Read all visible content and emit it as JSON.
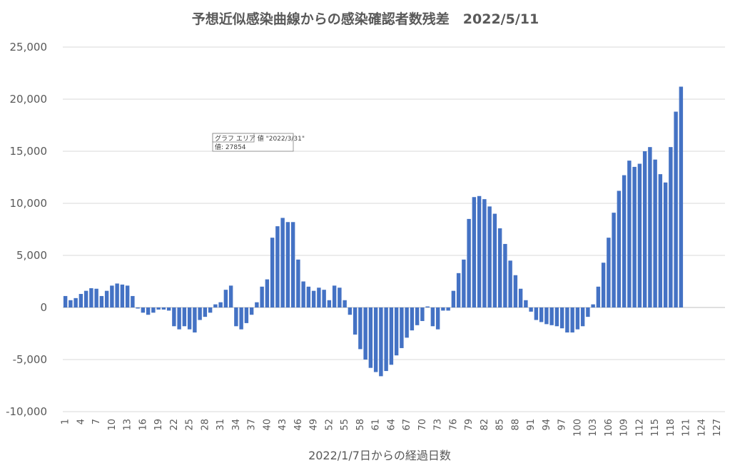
{
  "chart_data": {
    "type": "bar",
    "title": "予想近似感染曲線からの感染確認者数残差　2022/5/11",
    "xlabel": "2022/1/7日からの経過日数",
    "ylabel": "",
    "ylim": [
      -10000,
      25000
    ],
    "yticks": [
      25000,
      20000,
      15000,
      10000,
      5000,
      0,
      -5000,
      -10000
    ],
    "ytick_labels": [
      "25,000",
      "20,000",
      "15,000",
      "10,000",
      "5,000",
      "0",
      "-5,000",
      "-10,000"
    ],
    "x_min": 1,
    "x_max": 128,
    "xticks": [
      1,
      4,
      7,
      10,
      13,
      16,
      19,
      22,
      25,
      28,
      31,
      34,
      37,
      40,
      43,
      46,
      49,
      52,
      55,
      58,
      61,
      64,
      67,
      70,
      73,
      76,
      79,
      82,
      85,
      88,
      91,
      94,
      97,
      100,
      103,
      106,
      109,
      112,
      115,
      118,
      121,
      124,
      127
    ],
    "bar_color": "#4472c4",
    "grid": true,
    "legend": "none",
    "x": [
      1,
      2,
      3,
      4,
      5,
      6,
      7,
      8,
      9,
      10,
      11,
      12,
      13,
      14,
      15,
      16,
      17,
      18,
      19,
      20,
      21,
      22,
      23,
      24,
      25,
      26,
      27,
      28,
      29,
      30,
      31,
      32,
      33,
      34,
      35,
      36,
      37,
      38,
      39,
      40,
      41,
      42,
      43,
      44,
      45,
      46,
      47,
      48,
      49,
      50,
      51,
      52,
      53,
      54,
      55,
      56,
      57,
      58,
      59,
      60,
      61,
      62,
      63,
      64,
      65,
      66,
      67,
      68,
      69,
      70,
      71,
      72,
      73,
      74,
      75,
      76,
      77,
      78,
      79,
      80,
      81,
      82,
      83,
      84,
      85,
      86,
      87,
      88,
      89,
      90,
      91,
      92,
      93,
      94,
      95,
      96,
      97,
      98,
      99,
      100,
      101,
      102,
      103,
      104,
      105,
      106,
      107,
      108,
      109,
      110,
      111,
      112,
      113,
      114,
      115,
      116,
      117,
      118,
      119,
      120
    ],
    "values": [
      1100,
      700,
      900,
      1300,
      1600,
      1850,
      1800,
      1100,
      1600,
      2100,
      2300,
      2200,
      2100,
      1100,
      -100,
      -500,
      -700,
      -500,
      -200,
      -200,
      -300,
      -1800,
      -2100,
      -1800,
      -2100,
      -2400,
      -1200,
      -900,
      -500,
      300,
      500,
      1700,
      2100,
      -1800,
      -2100,
      -1500,
      -700,
      500,
      2000,
      2700,
      6700,
      7800,
      8600,
      8200,
      8200,
      4600,
      2500,
      2000,
      1600,
      1900,
      1700,
      700,
      2100,
      1900,
      700,
      -700,
      -2600,
      -4000,
      -5000,
      -5800,
      -6200,
      -6600,
      -6100,
      -5500,
      -4600,
      -3900,
      -2900,
      -2200,
      -1700,
      -1300,
      100,
      -1800,
      -2100,
      -300,
      -300,
      1600,
      3300,
      4600,
      8500,
      10600,
      10700,
      10400,
      9700,
      9000,
      7600,
      6100,
      4500,
      3100,
      1800,
      700,
      -400,
      -1200,
      -1400,
      -1600,
      -1700,
      -1800,
      -2000,
      -2400,
      -2400,
      -2100,
      -1800,
      -900,
      300,
      2000,
      4300,
      6700,
      9100,
      11200,
      12700,
      14100,
      13500,
      13800,
      15000,
      15400,
      14200,
      12800,
      12000,
      15400,
      18800,
      21200
    ],
    "tooltip": {
      "line1": "グラフ エリア 値 \"2022/3/31\"",
      "line2": "値: 27854"
    }
  }
}
